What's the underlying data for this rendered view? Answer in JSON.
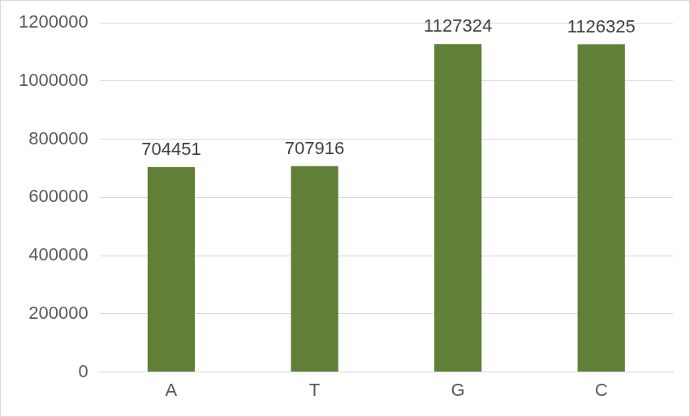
{
  "chart_data": {
    "type": "bar",
    "categories": [
      "A",
      "T",
      "G",
      "C"
    ],
    "values": [
      704451,
      707916,
      1127324,
      1126325
    ],
    "color": "#608038",
    "ylim": [
      0,
      1200000
    ],
    "yticks": [
      0,
      200000,
      400000,
      600000,
      800000,
      1000000,
      1200000
    ],
    "grid": true,
    "data_labels": true
  }
}
